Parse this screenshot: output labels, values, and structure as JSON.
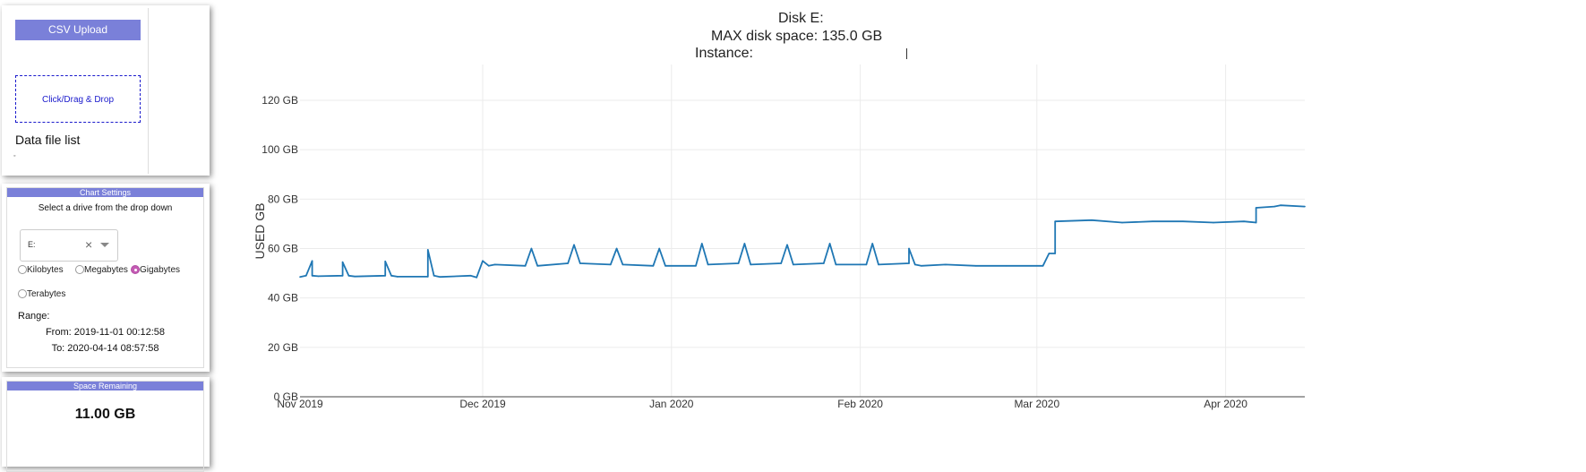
{
  "upload": {
    "button_label": "CSV Upload",
    "dropzone_label": "Click/Drag & Drop",
    "file_list_title": "Data file list",
    "bullet": "◦"
  },
  "settings": {
    "header": "Chart Settings",
    "prompt": "Select a drive from the drop down",
    "drive_value": "E:",
    "clear_glyph": "×",
    "units": [
      {
        "label": "Kilobytes",
        "selected": false
      },
      {
        "label": "Megabytes",
        "selected": false
      },
      {
        "label": "Gigabytes",
        "selected": true
      },
      {
        "label": "Terabytes",
        "selected": false
      }
    ],
    "range_label": "Range:",
    "range_from": "From: 2019-11-01 00:12:58",
    "range_to": "To: 2020-04-14 08:57:58"
  },
  "space": {
    "header": "Space Remaining",
    "value": "11.00 GB"
  },
  "chart": {
    "title_line1": "Disk E:",
    "title_line2": "MAX disk space: 135.0 GB",
    "title_line3": "Instance:"
  },
  "colors": {
    "accent": "#7a80d9",
    "series": "#1f77b4",
    "radio_selected": "#c45bb4",
    "dropzone": "#1a1acc"
  },
  "chart_data": {
    "type": "line",
    "xlabel": "",
    "ylabel": "USED GB",
    "ylim": [
      0,
      135
    ],
    "y_ticks": [
      0,
      20,
      40,
      60,
      80,
      100,
      120
    ],
    "y_tick_labels": [
      "0 GB",
      "20 GB",
      "40 GB",
      "60 GB",
      "80 GB",
      "100 GB",
      "120 GB"
    ],
    "x_range": [
      "2019-11-01",
      "2020-04-14"
    ],
    "x_ticks": [
      "2019-11-01",
      "2019-12-01",
      "2020-01-01",
      "2020-02-01",
      "2020-03-01",
      "2020-04-01"
    ],
    "x_tick_labels": [
      "Nov 2019",
      "Dec 2019",
      "Jan 2020",
      "Feb 2020",
      "Mar 2020",
      "Apr 2020"
    ],
    "grid": true,
    "series": [
      {
        "x": [
          "2019-11-01",
          "2019-11-02",
          "2019-11-03",
          "2019-11-03",
          "2019-11-04",
          "2019-11-08",
          "2019-11-08",
          "2019-11-09",
          "2019-11-10",
          "2019-11-15",
          "2019-11-15",
          "2019-11-16",
          "2019-11-17",
          "2019-11-22",
          "2019-11-22",
          "2019-11-23",
          "2019-11-24",
          "2019-11-29",
          "2019-11-30",
          "2019-12-01",
          "2019-12-02",
          "2019-12-03",
          "2019-12-08",
          "2019-12-09",
          "2019-12-10",
          "2019-12-15",
          "2019-12-16",
          "2019-12-17",
          "2019-12-22",
          "2019-12-23",
          "2019-12-24",
          "2019-12-29",
          "2019-12-30",
          "2019-12-31",
          "2020-01-05",
          "2020-01-06",
          "2020-01-07",
          "2020-01-12",
          "2020-01-13",
          "2020-01-14",
          "2020-01-19",
          "2020-01-20",
          "2020-01-21",
          "2020-01-26",
          "2020-01-27",
          "2020-01-28",
          "2020-02-02",
          "2020-02-03",
          "2020-02-04",
          "2020-02-09",
          "2020-02-09",
          "2020-02-10",
          "2020-02-11",
          "2020-02-15",
          "2020-02-20",
          "2020-02-25",
          "2020-02-29",
          "2020-03-02",
          "2020-03-03",
          "2020-03-04",
          "2020-03-04",
          "2020-03-10",
          "2020-03-15",
          "2020-03-20",
          "2020-03-25",
          "2020-03-30",
          "2020-04-04",
          "2020-04-06",
          "2020-04-06",
          "2020-04-09",
          "2020-04-10",
          "2020-04-14"
        ],
        "y": [
          48.5,
          49,
          55,
          49,
          48.8,
          49,
          54.5,
          49,
          48.7,
          49,
          54.8,
          49,
          48.6,
          48.6,
          59.5,
          49,
          48.5,
          49,
          48.3,
          55,
          53,
          53.5,
          53,
          60,
          53,
          54,
          61.5,
          54,
          53.5,
          60,
          53.5,
          53,
          60,
          53,
          53,
          62,
          53.5,
          54,
          62,
          53.5,
          54,
          61.5,
          53.5,
          54,
          62,
          53.5,
          53.5,
          62,
          53.5,
          54,
          60,
          53.5,
          53,
          53.5,
          53,
          53,
          53,
          53,
          58,
          58,
          71,
          71.5,
          70.5,
          71,
          71,
          70.5,
          71,
          70.5,
          76.5,
          77,
          77.5,
          77
        ]
      }
    ]
  }
}
